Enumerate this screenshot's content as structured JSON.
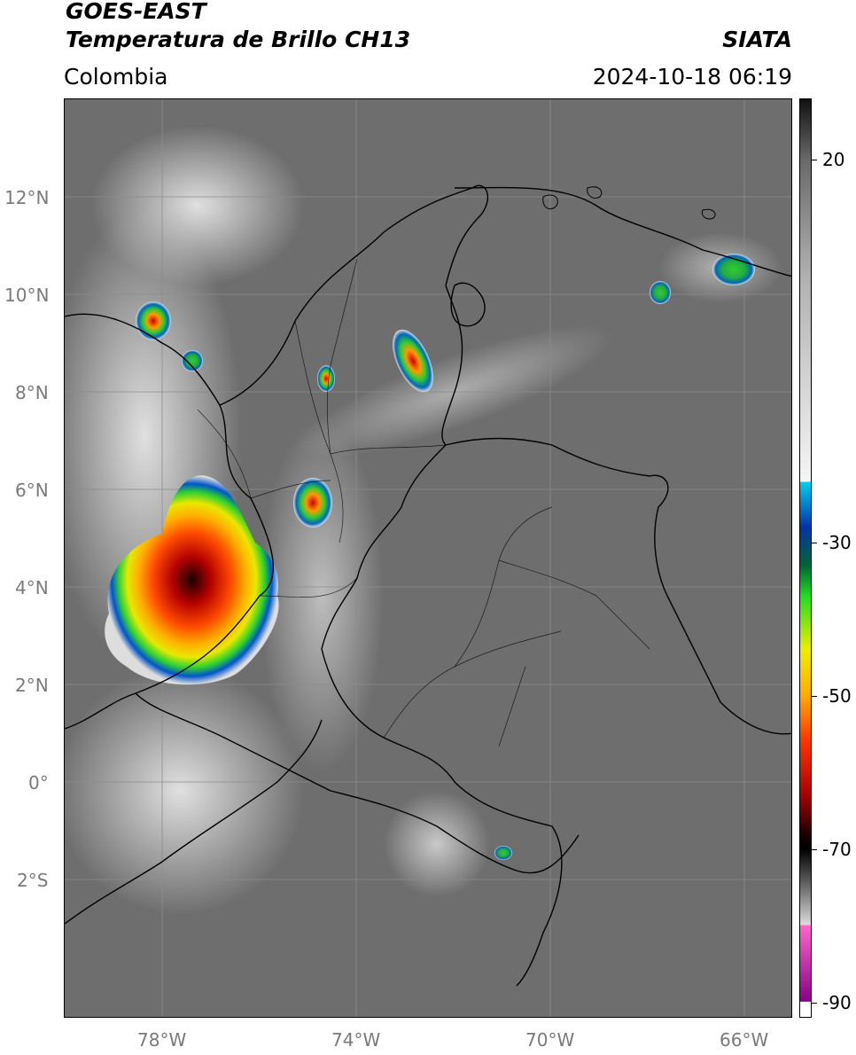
{
  "header": {
    "satellite": "GOES-EAST",
    "product": "Temperatura de Brillo CH13",
    "region": "Colombia",
    "agency": "SIATA",
    "datetime": "2024-10-18 06:19"
  },
  "axes": {
    "lat_labels": [
      "12°N",
      "10°N",
      "8°N",
      "6°N",
      "4°N",
      "2°N",
      "0°",
      "2°S"
    ],
    "lon_labels": [
      "78°W",
      "74°W",
      "70°W",
      "66°W"
    ]
  },
  "colorbar": {
    "tick_labels": [
      "20",
      "-30",
      "-50",
      "-70",
      "-90"
    ],
    "tick_values": [
      20,
      -30,
      -50,
      -70,
      -90
    ],
    "range": [
      -92,
      28
    ]
  },
  "colors": {
    "background_gray": "#6e6e6e",
    "land_light": "#8a8a8a",
    "cloud_white": "#e6e6e6",
    "border_line": "#000000"
  }
}
